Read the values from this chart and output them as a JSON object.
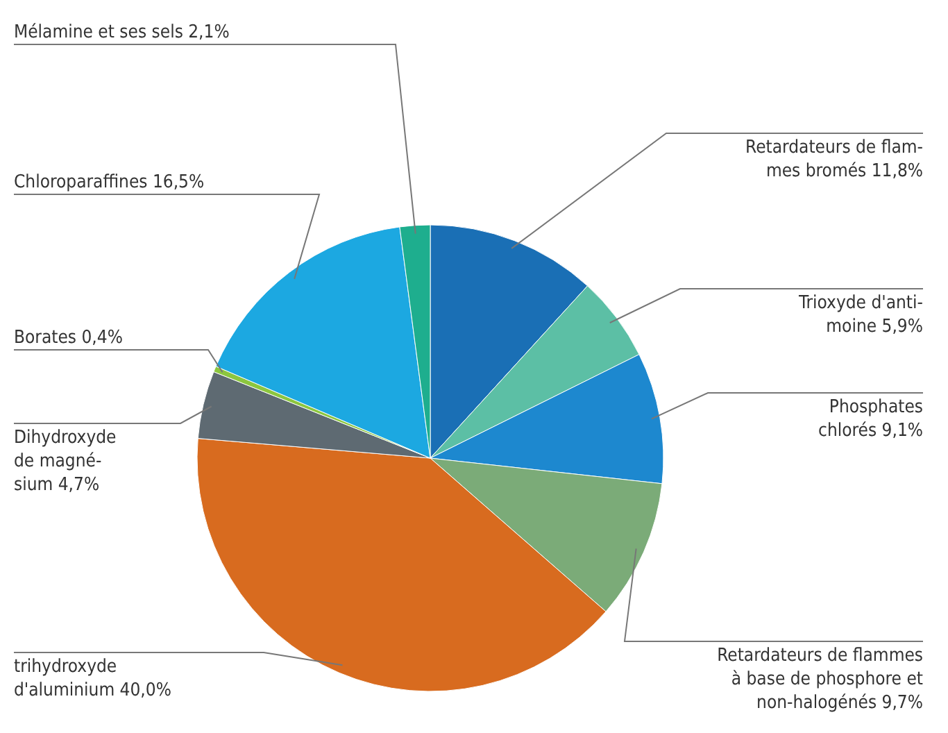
{
  "chart_data": {
    "type": "pie",
    "categories": [
      "Retardateurs de flam-\nmes bromés",
      "Trioxyde d'anti-\nmoine",
      "Phosphates\nchlorés",
      "Retardateurs de flammes\nà base de phosphore et\nnon-halogénés",
      "trihydroxyde\nd'aluminium",
      "Dihydroxyde\nde magné-\nsium",
      "Borates",
      "Chloroparaffines",
      "Mélamine et ses sels"
    ],
    "values": [
      11.8,
      5.9,
      9.1,
      9.7,
      40.0,
      4.7,
      0.4,
      16.5,
      2.1
    ],
    "value_labels": [
      "11,8%",
      "5,9%",
      "9,1%",
      "9,7%",
      "40,0%",
      "4,7%",
      "0,4%",
      "16,5%",
      "2,1%"
    ],
    "colors": [
      "#1a6fb5",
      "#5cbfa5",
      "#1d88cf",
      "#7bab78",
      "#d86b1f",
      "#5e6a72",
      "#8cc63f",
      "#1ca8e1",
      "#1eae8e"
    ]
  }
}
